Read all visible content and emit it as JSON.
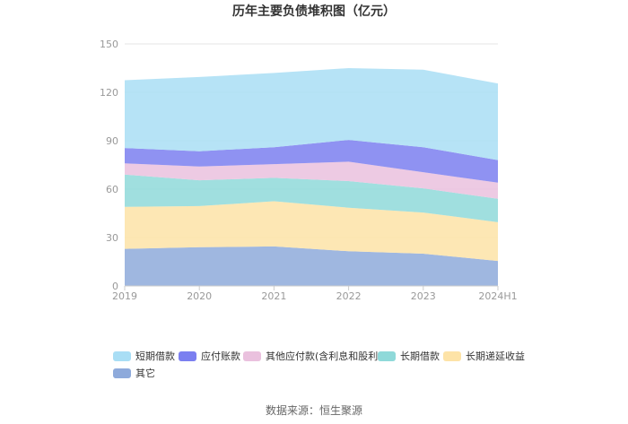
{
  "chart_data": {
    "type": "area",
    "stacked": true,
    "title": "历年主要负债堆积图（亿元）",
    "xlabel": "",
    "ylabel": "",
    "categories": [
      "2019",
      "2020",
      "2021",
      "2022",
      "2023",
      "2024H1"
    ],
    "ylim": [
      0,
      150
    ],
    "yticks": [
      0,
      30,
      60,
      90,
      120,
      150
    ],
    "grid": true,
    "legend_position": "bottom",
    "series": [
      {
        "name": "其它",
        "color": "#8eaadb",
        "values": [
          23,
          24,
          24.5,
          21.5,
          20,
          15.5
        ]
      },
      {
        "name": "长期递延收益",
        "color": "#fde3a7",
        "values": [
          26,
          25.5,
          28,
          27,
          25.5,
          24
        ]
      },
      {
        "name": "长期借款",
        "color": "#8fd9d9",
        "values": [
          20,
          16,
          14.5,
          16.5,
          15,
          14.5
        ]
      },
      {
        "name": "其他应付款(含利息和股利)",
        "color": "#eac1de",
        "values": [
          7,
          8.5,
          8.5,
          12,
          10,
          10
        ]
      },
      {
        "name": "应付账款",
        "color": "#7b7ff0",
        "values": [
          9.5,
          9.5,
          10.5,
          13.5,
          15.5,
          14
        ]
      },
      {
        "name": "短期借款",
        "color": "#a9def5",
        "values": [
          42,
          46,
          46,
          44.5,
          48,
          47.5
        ]
      }
    ],
    "legend_order": [
      "短期借款",
      "应付账款",
      "其他应付款(含利息和股利)",
      "长期借款",
      "长期递延收益",
      "其它"
    ]
  },
  "source": "数据来源：恒生聚源"
}
